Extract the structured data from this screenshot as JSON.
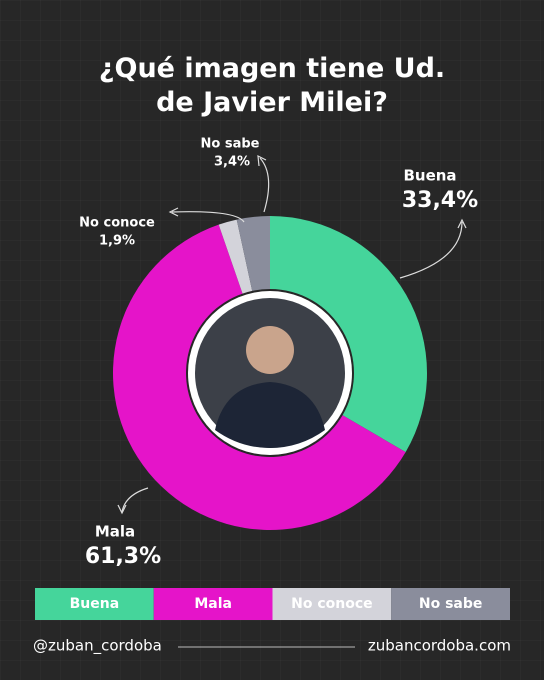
{
  "chart_data": {
    "type": "donut",
    "title": "¿Qué imagen tiene Ud. de Javier Milei?",
    "categories": [
      "Buena",
      "Mala",
      "No conoce",
      "No sabe"
    ],
    "values": [
      33.4,
      61.3,
      1.9,
      3.4
    ],
    "value_labels": [
      "33,4%",
      "61,3%",
      "1,9%",
      "3,4%"
    ],
    "colors": [
      "#45d59b",
      "#e514c9",
      "#d3d3da",
      "#8a8d9c"
    ]
  },
  "footer": {
    "handle": "@zuban_cordoba",
    "website": "zubancordoba.com"
  }
}
